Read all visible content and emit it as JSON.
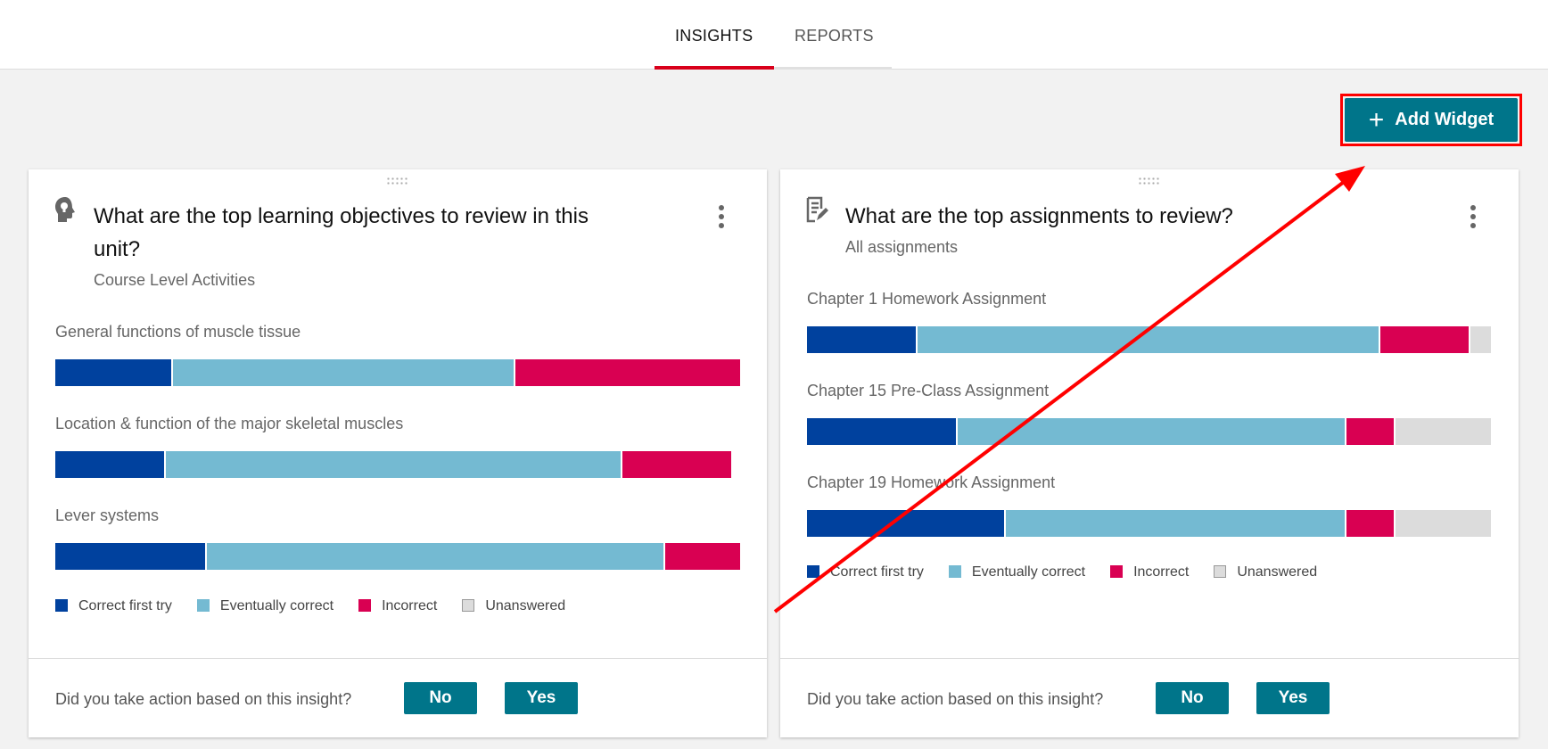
{
  "tabs": [
    {
      "label": "INSIGHTS",
      "active": true
    },
    {
      "label": "REPORTS",
      "active": false
    }
  ],
  "add_widget": {
    "label": "Add Widget",
    "icon": "plus-icon"
  },
  "colors": {
    "correct_first_try": "#00419e",
    "eventually_correct": "#74bad2",
    "incorrect": "#d90052",
    "unanswered": "#dcdcdc",
    "accent": "#00758a",
    "tab_active": "#d9001b",
    "annotation": "#ff0000"
  },
  "legend": [
    "Correct first try",
    "Eventually correct",
    "Incorrect",
    "Unanswered"
  ],
  "cards": [
    {
      "icon": "head-lightbulb-icon",
      "title": "What are the top learning objectives to review in this unit?",
      "subtitle": "Course Level Activities",
      "items": [
        {
          "label": "General functions of muscle tissue",
          "values": [
            17,
            50,
            33,
            0
          ]
        },
        {
          "label": "Location & function of the major skeletal muscles",
          "values": [
            16,
            67,
            16,
            1
          ]
        },
        {
          "label": "Lever systems",
          "values": [
            22,
            67,
            11,
            0
          ]
        }
      ],
      "question": "Did you take action based on this insight?",
      "no": "No",
      "yes": "Yes"
    },
    {
      "icon": "assignment-edit-icon",
      "title": "What are the top assignments to review?",
      "subtitle": "All assignments",
      "items": [
        {
          "label": "Chapter 1 Homework Assignment",
          "values": [
            16,
            68,
            13,
            3
          ]
        },
        {
          "label": "Chapter 15 Pre-Class Assignment",
          "values": [
            22,
            57,
            7,
            14
          ]
        },
        {
          "label": "Chapter 19 Homework Assignment",
          "values": [
            29,
            50,
            7,
            14
          ]
        }
      ],
      "question": "Did you take action based on this insight?",
      "no": "No",
      "yes": "Yes"
    }
  ]
}
